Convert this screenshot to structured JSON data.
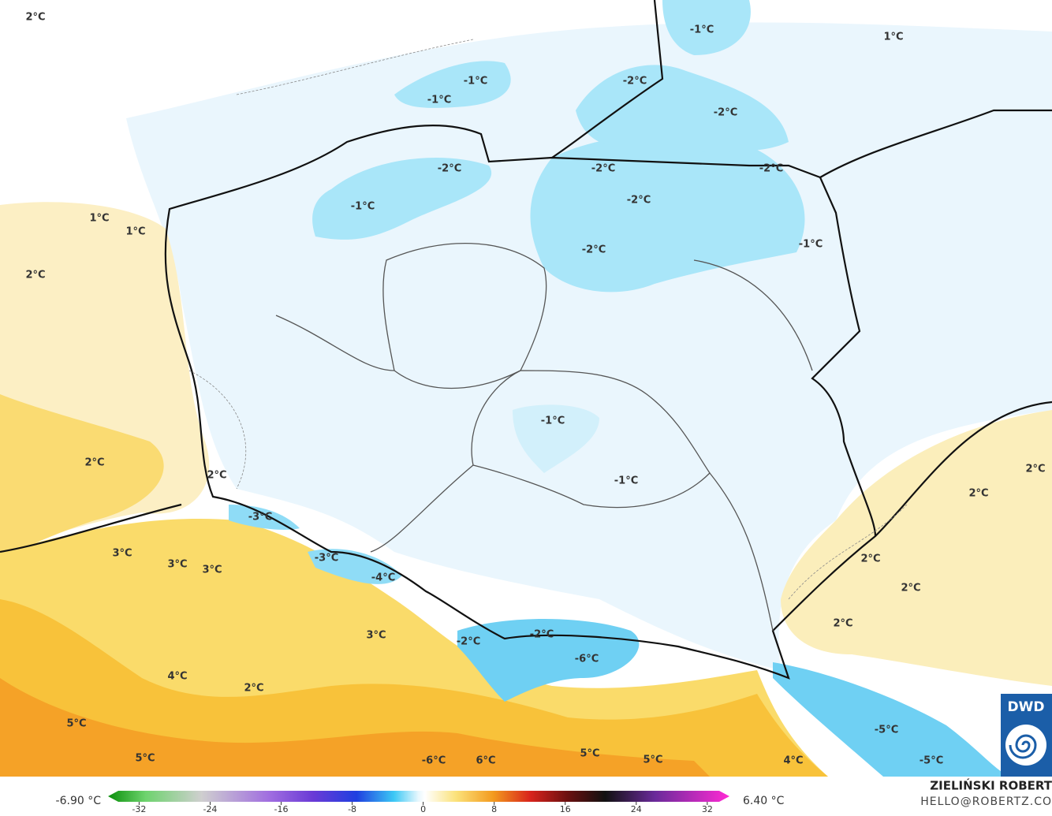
{
  "map": {
    "labels": [
      "2°C",
      "1°C",
      "-1°C",
      "-1°C",
      "-2°C",
      "-1°C",
      "-2°C",
      "-2°C",
      "-2°C",
      "-2°C",
      "-2°C",
      "-1°C",
      "1°C",
      "1°C",
      "-1°C",
      "-2°C",
      "2°C",
      "-1°C",
      "2°C",
      "2°C",
      "-1°C",
      "2°C",
      "2°C",
      "-3°C",
      "3°C",
      "3°C",
      "3°C",
      "-3°C",
      "2°C",
      "-4°C",
      "2°C",
      "2°C",
      "3°C",
      "-2°C",
      "-2°C",
      "-6°C",
      "4°C",
      "2°C",
      "5°C",
      "-5°C",
      "5°C",
      "-6°C",
      "6°C",
      "5°C",
      "5°C",
      "4°C",
      "-5°C"
    ]
  },
  "colorbar": {
    "range": [
      -35.5,
      34.5
    ],
    "ticks": [
      -32,
      -24,
      -16,
      -8,
      0,
      8,
      16,
      24,
      32
    ],
    "min_label": "-6.90 °C",
    "max_label": "6.40 °C"
  },
  "credits": {
    "logo": "DWD",
    "author": "ZIELIŃSKI ROBERT",
    "email": "HELLO@ROBERTZ.CO"
  }
}
